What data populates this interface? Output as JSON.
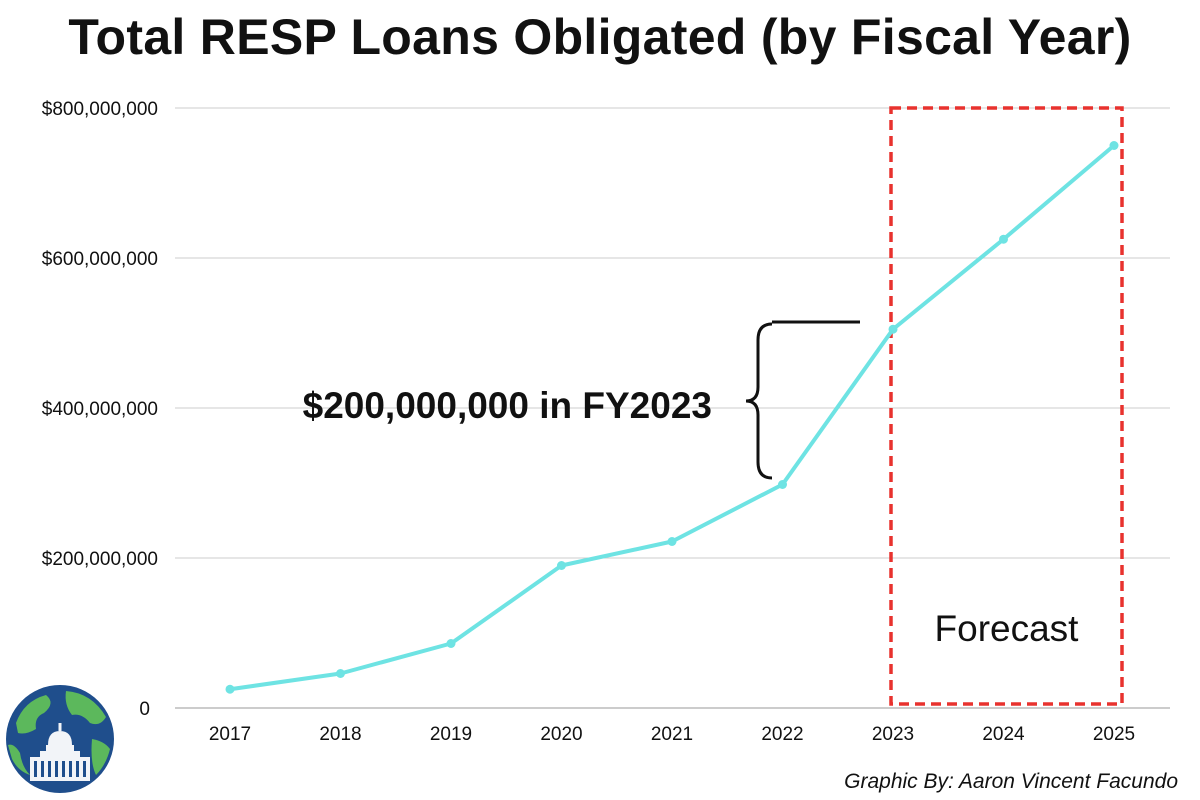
{
  "chart_data": {
    "type": "line",
    "title": "Total RESP Loans Obligated (by Fiscal Year)",
    "categories": [
      "2017",
      "2018",
      "2019",
      "2020",
      "2021",
      "2022",
      "2023",
      "2024",
      "2025"
    ],
    "series": [
      {
        "values": [
          25000000,
          46000000,
          86000000,
          190000000,
          222000000,
          298000000,
          505000000,
          625000000,
          750000000
        ]
      }
    ],
    "y_ticks": [
      {
        "value": 0,
        "label": "0"
      },
      {
        "value": 200000000,
        "label": "$200,000,000"
      },
      {
        "value": 400000000,
        "label": "$400,000,000"
      },
      {
        "value": 600000000,
        "label": "$600,000,000"
      },
      {
        "value": 800000000,
        "label": "$800,000,000"
      }
    ],
    "ylim": [
      0,
      800000000
    ],
    "grid": true,
    "line_color": "#6ee3e3",
    "annotation": {
      "text": "$200,000,000 in FY2023"
    },
    "forecast": {
      "label": "Forecast",
      "start": "2023",
      "end": "2025",
      "color": "#e8322e"
    }
  },
  "credit": "Graphic By: Aaron Vincent Facundo",
  "logo": {
    "icon": "globe-capitol-icon"
  }
}
